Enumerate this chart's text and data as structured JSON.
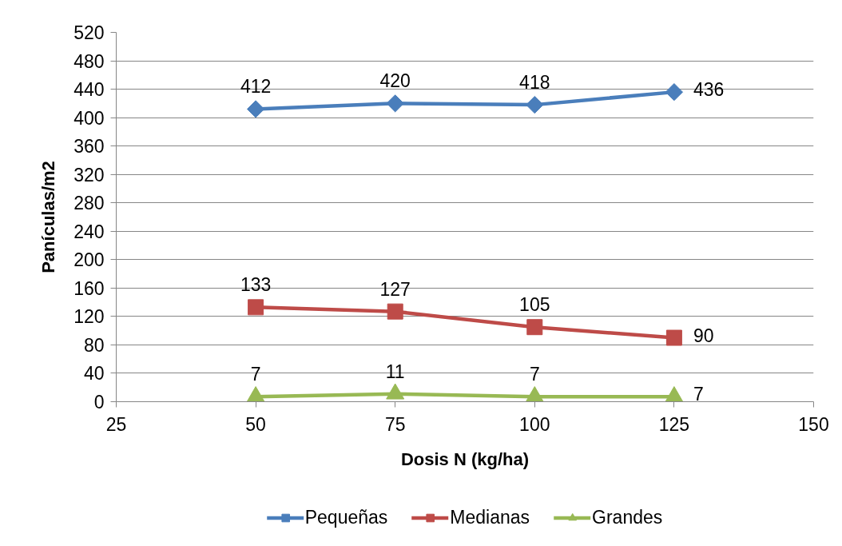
{
  "chart_data": {
    "type": "line",
    "xlabel": "Dosis N (kg/ha)",
    "ylabel": "Panículas/m2",
    "x": [
      50,
      75,
      100,
      125
    ],
    "series": [
      {
        "name": "Pequeñas",
        "color": "#4a7ebb",
        "marker": "diamond",
        "values": [
          412,
          420,
          418,
          436
        ]
      },
      {
        "name": "Medianas",
        "color": "#be4b48",
        "marker": "square",
        "values": [
          133,
          127,
          105,
          90
        ]
      },
      {
        "name": "Grandes",
        "color": "#98b954",
        "marker": "triangle",
        "values": [
          7,
          11,
          7,
          7
        ]
      }
    ],
    "xlim": [
      25,
      150
    ],
    "xticks": [
      25,
      50,
      75,
      100,
      125,
      150
    ],
    "ylim": [
      0,
      520
    ],
    "yticks": [
      0,
      40,
      80,
      120,
      160,
      200,
      240,
      280,
      320,
      360,
      400,
      440,
      480,
      520
    ],
    "grid": "y",
    "legend": "bottom",
    "data_labels": true,
    "line_style": "solid"
  }
}
